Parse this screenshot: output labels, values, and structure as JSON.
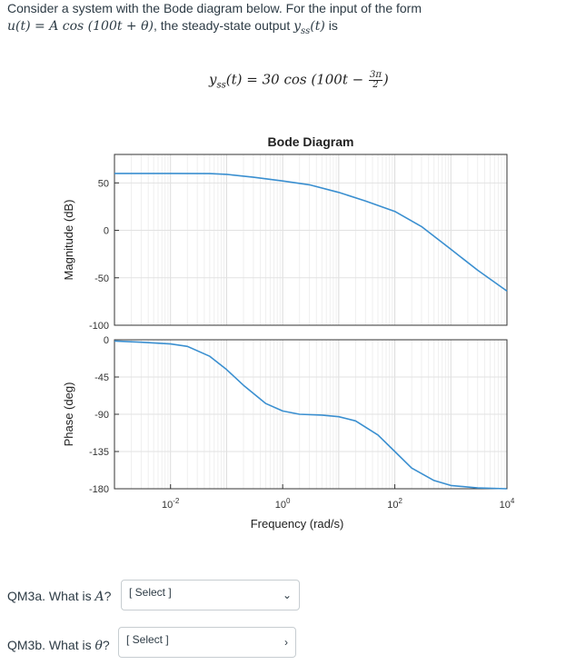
{
  "intro": {
    "line1_prefix": "Consider a system with the Bode diagram below. For the input of the form",
    "line2_math": "u(t) = A cos (100t + θ)",
    "line2_suffix": ", the steady-state output ",
    "line2_math2": "y",
    "line2_sub": "ss",
    "line2_math3": "(t)",
    "line2_end": " is"
  },
  "equation": {
    "lhs": "y",
    "lhs_sub": "ss",
    "mid": "(t) = 30 cos (100t − ",
    "frac_num": "3π",
    "frac_den": "2",
    "end": ")"
  },
  "chart_data": {
    "type": "line",
    "title": "Bode Diagram",
    "xlabel": "Frequency (rad/s)",
    "x_scale": "log",
    "xlim": [
      0.001,
      10000
    ],
    "x_ticks": [
      0.01,
      1,
      100,
      10000
    ],
    "x_tick_labels": [
      "10",
      "10",
      "10",
      "10"
    ],
    "x_tick_exponents": [
      "-2",
      "0",
      "2",
      "4"
    ],
    "grid": "on",
    "subplots": [
      {
        "name": "magnitude",
        "ylabel": "Magnitude (dB)",
        "ylim": [
          -100,
          80
        ],
        "y_ticks": [
          50,
          0,
          -50,
          -100
        ],
        "y_tick_labels": [
          "50",
          "0",
          "-50",
          "-100"
        ],
        "x": [
          0.001,
          0.01,
          0.05,
          0.1,
          0.3,
          1,
          3,
          10,
          30,
          100,
          300,
          1000,
          3000,
          10000
        ],
        "values": [
          60,
          60,
          59.8,
          59,
          56,
          52,
          48,
          40,
          31,
          20,
          4,
          -20,
          -42,
          -64
        ]
      },
      {
        "name": "phase",
        "ylabel": "Phase (deg)",
        "ylim": [
          -180,
          0
        ],
        "y_ticks": [
          0,
          -45,
          -90,
          -135,
          -180
        ],
        "y_tick_labels": [
          "0",
          "-45",
          "-90",
          "-135",
          "-180"
        ],
        "x": [
          0.001,
          0.003,
          0.01,
          0.02,
          0.05,
          0.1,
          0.2,
          0.5,
          1,
          2,
          5,
          10,
          20,
          50,
          100,
          200,
          500,
          1000,
          3000,
          10000
        ],
        "values": [
          -1.5,
          -3,
          -5,
          -8,
          -20,
          -36,
          -55,
          -77,
          -86,
          -90,
          -91,
          -93,
          -98,
          -115,
          -135,
          -155,
          -170,
          -176,
          -179,
          -180
        ]
      }
    ]
  },
  "questions": [
    {
      "label": "QM3a. What is ",
      "var": "A",
      "suffix": "?",
      "select": "[ Select ]"
    },
    {
      "label": "QM3b. What is ",
      "var": "θ",
      "suffix": "?",
      "select": "[ Select ]"
    }
  ],
  "colors": {
    "line": "#3a8fd0",
    "grid": "#e6e6e6",
    "axis": "#333333"
  }
}
